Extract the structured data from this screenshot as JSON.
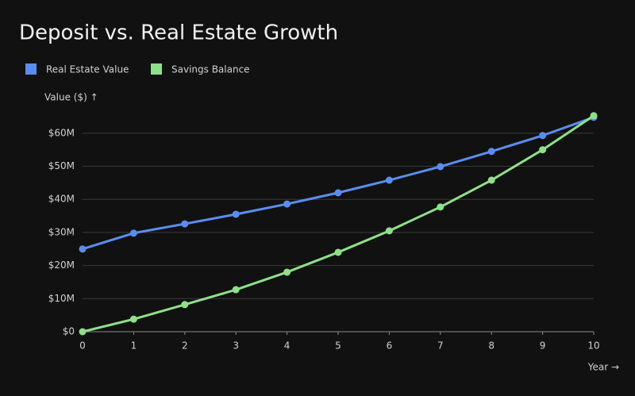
{
  "chart_data": {
    "type": "line",
    "title": "Deposit vs. Real Estate Growth",
    "y_label": "Value ($) ↑",
    "x_label": "Year →",
    "x": [
      0,
      1,
      2,
      3,
      4,
      5,
      6,
      7,
      8,
      9,
      10
    ],
    "series": [
      {
        "name": "Real Estate Value",
        "color": "#5b8def",
        "values": [
          25000000,
          29800000,
          32600000,
          35500000,
          38600000,
          42000000,
          45800000,
          49900000,
          54500000,
          59300000,
          64800000
        ]
      },
      {
        "name": "Savings Balance",
        "color": "#8ee08a",
        "values": [
          0,
          3800000,
          8200000,
          12700000,
          18000000,
          24000000,
          30500000,
          37700000,
          45800000,
          55000000,
          65300000
        ]
      }
    ],
    "xlim": [
      0,
      10
    ],
    "xticks": [
      0,
      1,
      2,
      3,
      4,
      5,
      6,
      7,
      8,
      9,
      10
    ],
    "ylim": [
      0,
      65000000
    ],
    "yticks": [
      {
        "value": 0,
        "label": "$0"
      },
      {
        "value": 10000000,
        "label": "$10M"
      },
      {
        "value": 20000000,
        "label": "$20M"
      },
      {
        "value": 30000000,
        "label": "$30M"
      },
      {
        "value": 40000000,
        "label": "$40M"
      },
      {
        "value": 50000000,
        "label": "$50M"
      },
      {
        "value": 60000000,
        "label": "$60M"
      }
    ],
    "grid": true,
    "legend": "top-left"
  }
}
